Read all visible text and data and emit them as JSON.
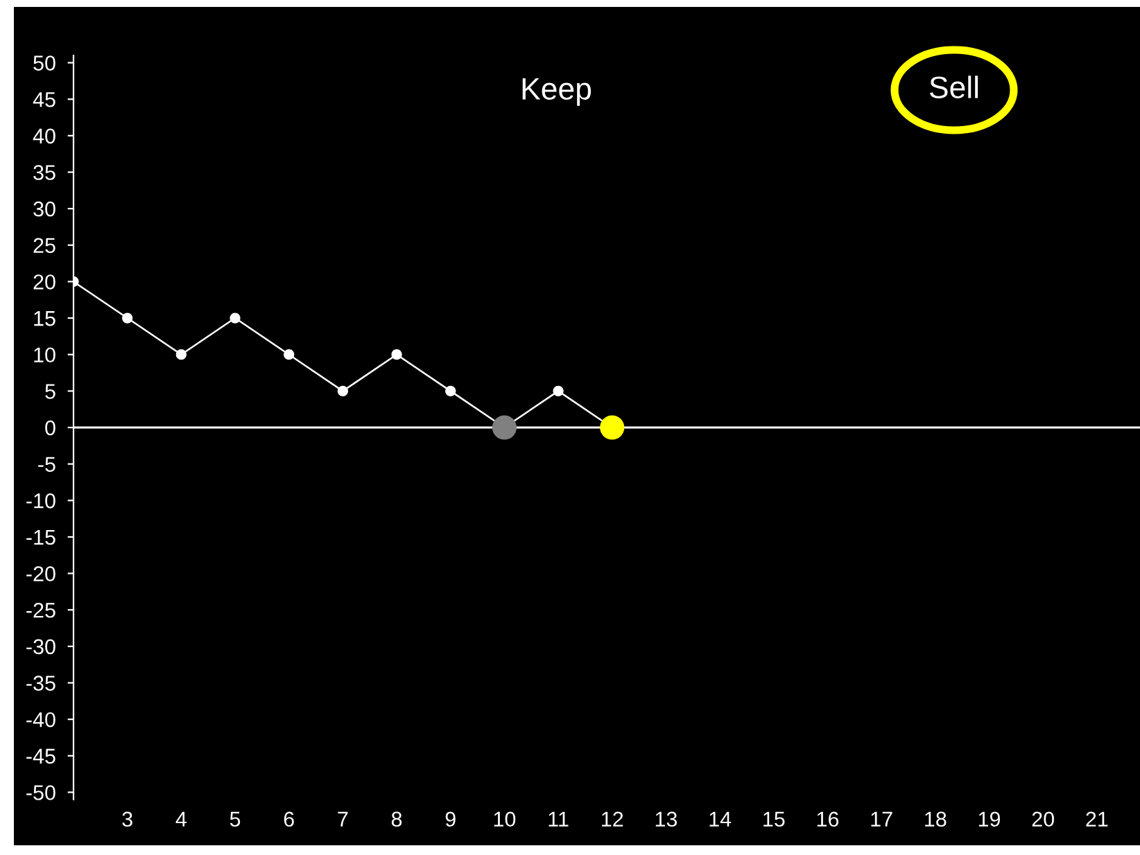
{
  "chart_data": {
    "type": "line",
    "x": [
      2,
      3,
      4,
      5,
      6,
      7,
      8,
      9,
      10,
      11,
      12
    ],
    "series": [
      {
        "color": "#ffffff",
        "values": [
          20,
          15,
          10,
          15,
          10,
          5,
          10,
          5,
          0,
          5,
          0
        ],
        "colors": [
          "#ffffff",
          "#ffffff",
          "#ffffff",
          "#ffffff",
          "#ffffff",
          "#ffffff",
          "#ffffff",
          "#ffffff",
          "#808080",
          "#ffffff",
          "#ffff00"
        ]
      }
    ],
    "xlim": [
      2,
      21.8
    ],
    "xticks": [
      3,
      4,
      5,
      6,
      7,
      8,
      9,
      10,
      11,
      12,
      13,
      14,
      15,
      16,
      17,
      18,
      19,
      20,
      21
    ],
    "ylim": [
      -51,
      51
    ],
    "yticks": [
      -50,
      -45,
      -40,
      -35,
      -30,
      -25,
      -20,
      -15,
      -10,
      -5,
      0,
      5,
      10,
      15,
      20,
      25,
      30,
      35,
      40,
      45,
      50
    ],
    "ref_lines": [
      {
        "axis": "y",
        "value": 0,
        "color": "#ffffff"
      }
    ],
    "annotations": [
      "Keep",
      "Sell"
    ],
    "marker": "circle",
    "grid": false,
    "legend": false
  }
}
